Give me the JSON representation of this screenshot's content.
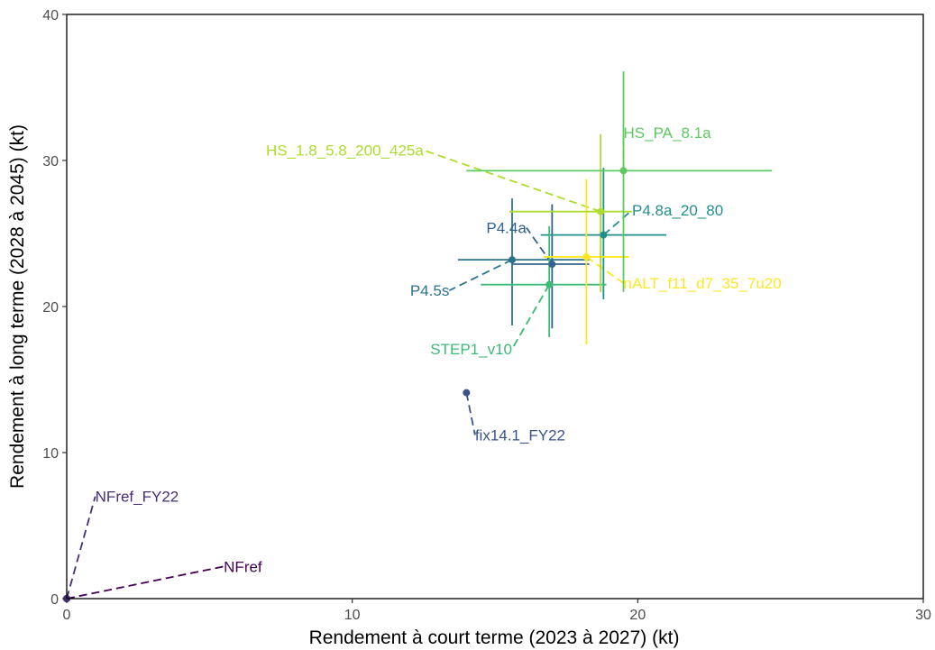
{
  "chart_data": {
    "type": "scatter",
    "title": "",
    "xlabel": "Rendement à court terme (2023 à 2027) (kt)",
    "ylabel": "Rendement à long terme (2028 à 2045) (kt)",
    "xlim": [
      0,
      30
    ],
    "ylim": [
      0,
      40
    ],
    "xticks": [
      0,
      10,
      20,
      30
    ],
    "yticks": [
      0,
      10,
      20,
      30,
      40
    ],
    "xtick_labels": [
      "0",
      "10",
      "20",
      "30"
    ],
    "ytick_labels": [
      "0",
      "10",
      "20",
      "30",
      "40"
    ],
    "grid": false,
    "legend": "none",
    "points": [
      {
        "label": "NFref",
        "x": 0.0,
        "y": 0.0,
        "x_range": null,
        "y_range": null,
        "color": "#440154",
        "label_x": 5.5,
        "label_y": 2.2
      },
      {
        "label": "NFref_FY22",
        "x": 0.0,
        "y": 0.0,
        "x_range": null,
        "y_range": null,
        "color": "#472d7b",
        "label_x": 1.0,
        "label_y": 7.0
      },
      {
        "label": "fix14.1_FY22",
        "x": 14.0,
        "y": 14.1,
        "x_range": null,
        "y_range": null,
        "color": "#3b528b",
        "label_x": 14.3,
        "label_y": 11.2
      },
      {
        "label": "P4.5s",
        "x": 15.6,
        "y": 23.2,
        "x_range": [
          13.7,
          18.3
        ],
        "y_range": [
          18.7,
          27.4
        ],
        "color": "#2c728e",
        "label_x": 13.4,
        "label_y": 21.1
      },
      {
        "label": "P4.4a",
        "x": 17.0,
        "y": 22.9,
        "x_range": [
          15.6,
          18.3
        ],
        "y_range": [
          18.5,
          27.0
        ],
        "color": "#33638d",
        "label_x": 16.1,
        "label_y": 25.4
      },
      {
        "label": "P4.8a_20_80",
        "x": 18.8,
        "y": 24.9,
        "x_range": [
          16.6,
          21.0
        ],
        "y_range": [
          20.5,
          29.5
        ],
        "color": "#21908d",
        "label_x": 19.8,
        "label_y": 26.6
      },
      {
        "label": "STEP1_v10",
        "x": 16.9,
        "y": 21.5,
        "x_range": [
          14.5,
          18.9
        ],
        "y_range": [
          17.9,
          25.5
        ],
        "color": "#3bbb75",
        "label_x": 15.6,
        "label_y": 17.1
      },
      {
        "label": "nALT_f11_d7_35_7u20",
        "x": 18.2,
        "y": 23.4,
        "x_range": [
          16.7,
          19.7
        ],
        "y_range": [
          17.4,
          28.7
        ],
        "color": "#fde725",
        "label_x": 19.5,
        "label_y": 21.6
      },
      {
        "label": "HS_1.8_5.8_200_425a",
        "x": 18.7,
        "y": 26.5,
        "x_range": [
          15.5,
          19.8
        ],
        "y_range": [
          21.0,
          31.8
        ],
        "color": "#addc30",
        "label_x": 12.5,
        "label_y": 30.7
      },
      {
        "label": "HS_PA_8.1a",
        "x": 19.5,
        "y": 29.3,
        "x_range": [
          14.0,
          24.7
        ],
        "y_range": [
          21.0,
          36.1
        ],
        "color": "#5ec962",
        "label_x": 19.5,
        "label_y": 31.9
      }
    ]
  }
}
